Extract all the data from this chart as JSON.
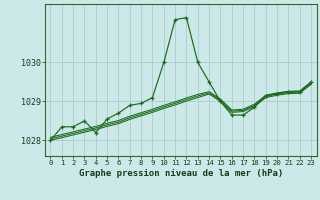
{
  "title": "Graphe pression niveau de la mer (hPa)",
  "bg_color": "#cce8e8",
  "grid_color": "#aacccc",
  "line_color": "#1a6b1a",
  "x_values": [
    0,
    1,
    2,
    3,
    4,
    5,
    6,
    7,
    8,
    9,
    10,
    11,
    12,
    13,
    14,
    15,
    16,
    17,
    18,
    19,
    20,
    21,
    22,
    23
  ],
  "ylim": [
    1027.6,
    1031.5
  ],
  "yticks": [
    1028,
    1029,
    1030
  ],
  "main_series": [
    1028.0,
    1028.35,
    1028.35,
    1028.5,
    1028.2,
    1028.55,
    1028.7,
    1028.9,
    1028.95,
    1029.1,
    1030.0,
    1031.1,
    1031.15,
    1030.0,
    1029.5,
    1029.0,
    1028.65,
    1028.65,
    1028.85,
    1029.15,
    1029.2,
    1029.25,
    1029.25,
    1029.5
  ],
  "smooth_lines": [
    [
      1028.0,
      1028.07,
      1028.14,
      1028.21,
      1028.28,
      1028.36,
      1028.43,
      1028.54,
      1028.63,
      1028.72,
      1028.82,
      1028.91,
      1029.01,
      1029.1,
      1029.19,
      1029.0,
      1028.72,
      1028.74,
      1028.87,
      1029.1,
      1029.16,
      1029.2,
      1029.21,
      1029.44
    ],
    [
      1028.04,
      1028.11,
      1028.18,
      1028.25,
      1028.32,
      1028.4,
      1028.47,
      1028.58,
      1028.67,
      1028.76,
      1028.86,
      1028.95,
      1029.05,
      1029.14,
      1029.22,
      1029.03,
      1028.75,
      1028.77,
      1028.9,
      1029.13,
      1029.19,
      1029.23,
      1029.24,
      1029.47
    ],
    [
      1028.08,
      1028.15,
      1028.22,
      1028.29,
      1028.36,
      1028.44,
      1028.51,
      1028.62,
      1028.71,
      1028.8,
      1028.9,
      1028.99,
      1029.09,
      1029.18,
      1029.25,
      1029.06,
      1028.78,
      1028.8,
      1028.93,
      1029.16,
      1029.22,
      1029.26,
      1029.27,
      1029.5
    ]
  ],
  "spine_color": "#2a6a2a",
  "tick_label_color": "#1a3a1a",
  "xlabel_fontsize": 6.5,
  "ytick_fontsize": 6.0,
  "xtick_fontsize": 5.2
}
